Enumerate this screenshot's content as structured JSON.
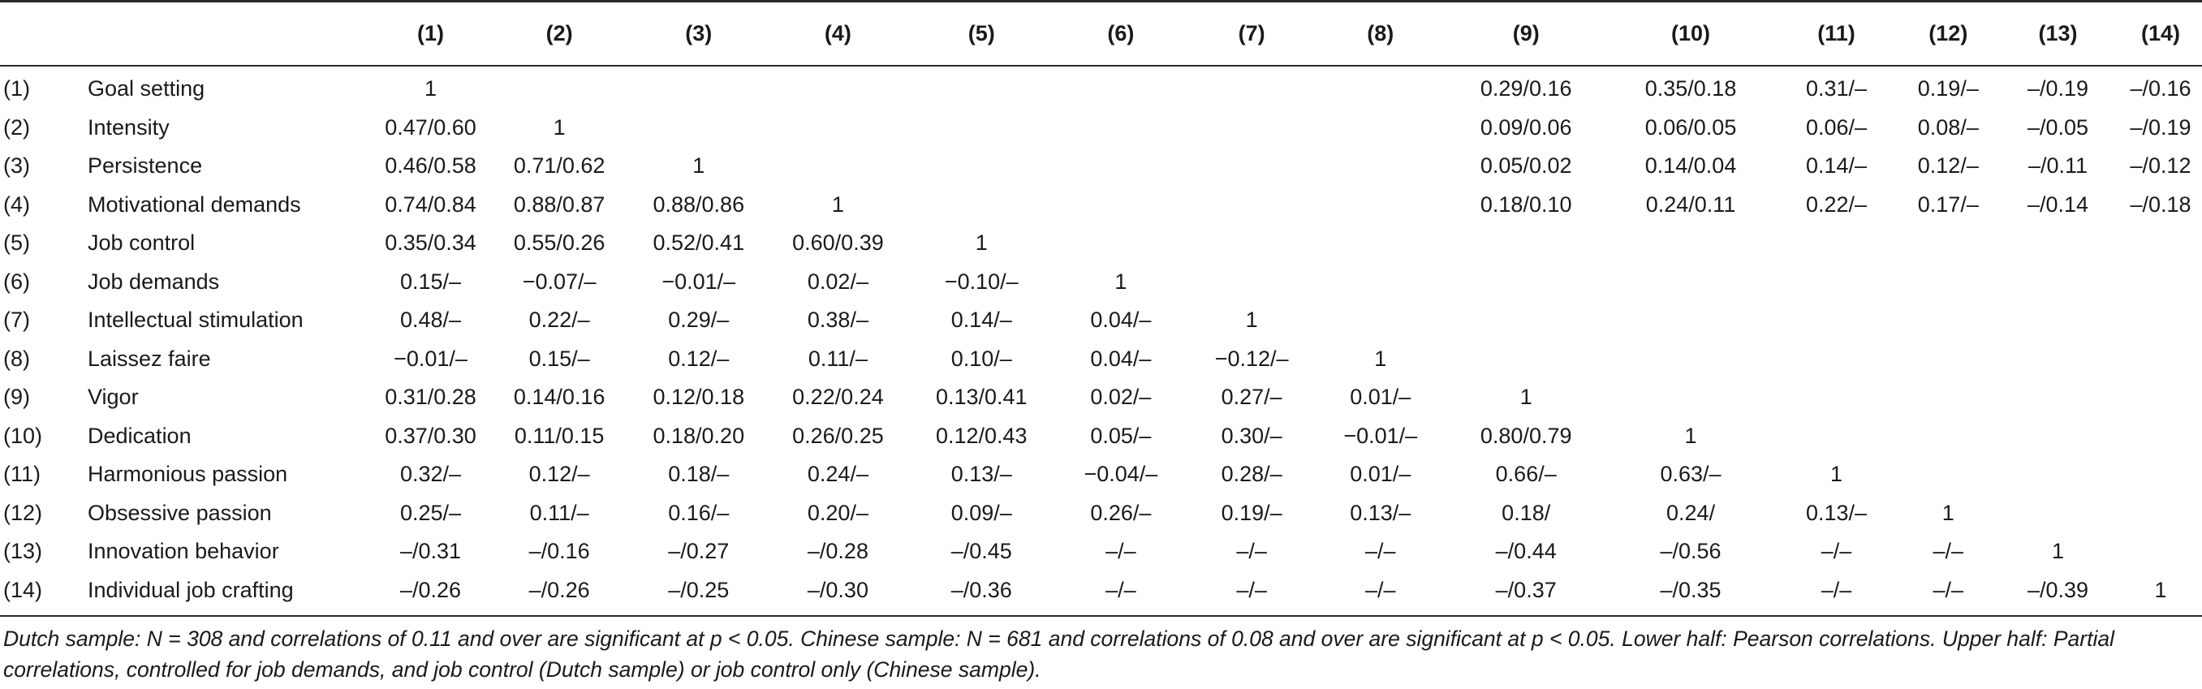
{
  "table": {
    "columns": [
      "(1)",
      "(2)",
      "(3)",
      "(4)",
      "(5)",
      "(6)",
      "(7)",
      "(8)",
      "(9)",
      "(10)",
      "(11)",
      "(12)",
      "(13)",
      "(14)"
    ],
    "rows": [
      {
        "num": "(1)",
        "name": "Goal setting",
        "cells": [
          "1",
          "",
          "",
          "",
          "",
          "",
          "",
          "",
          "0.29/0.16",
          "0.35/0.18",
          "0.31/–",
          "0.19/–",
          "–/0.19",
          "–/0.16"
        ]
      },
      {
        "num": "(2)",
        "name": "Intensity",
        "cells": [
          "0.47/0.60",
          "1",
          "",
          "",
          "",
          "",
          "",
          "",
          "0.09/0.06",
          "0.06/0.05",
          "0.06/–",
          "0.08/–",
          "–/0.05",
          "–/0.19"
        ]
      },
      {
        "num": "(3)",
        "name": "Persistence",
        "cells": [
          "0.46/0.58",
          "0.71/0.62",
          "1",
          "",
          "",
          "",
          "",
          "",
          "0.05/0.02",
          "0.14/0.04",
          "0.14/–",
          "0.12/–",
          "–/0.11",
          "–/0.12"
        ]
      },
      {
        "num": "(4)",
        "name": "Motivational demands",
        "cells": [
          "0.74/0.84",
          "0.88/0.87",
          "0.88/0.86",
          "1",
          "",
          "",
          "",
          "",
          "0.18/0.10",
          "0.24/0.11",
          "0.22/–",
          "0.17/–",
          "–/0.14",
          "–/0.18"
        ]
      },
      {
        "num": "(5)",
        "name": "Job control",
        "cells": [
          "0.35/0.34",
          "0.55/0.26",
          "0.52/0.41",
          "0.60/0.39",
          "1",
          "",
          "",
          "",
          "",
          "",
          "",
          "",
          "",
          ""
        ]
      },
      {
        "num": "(6)",
        "name": "Job demands",
        "cells": [
          "0.15/–",
          "−0.07/–",
          "−0.01/–",
          "0.02/–",
          "−0.10/–",
          "1",
          "",
          "",
          "",
          "",
          "",
          "",
          "",
          ""
        ]
      },
      {
        "num": "(7)",
        "name": "Intellectual stimulation",
        "cells": [
          "0.48/–",
          "0.22/–",
          "0.29/–",
          "0.38/–",
          "0.14/–",
          "0.04/–",
          "1",
          "",
          "",
          "",
          "",
          "",
          "",
          ""
        ]
      },
      {
        "num": "(8)",
        "name": "Laissez faire",
        "cells": [
          "−0.01/–",
          "0.15/–",
          "0.12/–",
          "0.11/–",
          "0.10/–",
          "0.04/–",
          "−0.12/–",
          "1",
          "",
          "",
          "",
          "",
          "",
          ""
        ]
      },
      {
        "num": "(9)",
        "name": "Vigor",
        "cells": [
          "0.31/0.28",
          "0.14/0.16",
          "0.12/0.18",
          "0.22/0.24",
          "0.13/0.41",
          "0.02/–",
          "0.27/–",
          "0.01/–",
          "1",
          "",
          "",
          "",
          "",
          ""
        ]
      },
      {
        "num": "(10)",
        "name": "Dedication",
        "cells": [
          "0.37/0.30",
          "0.11/0.15",
          "0.18/0.20",
          "0.26/0.25",
          "0.12/0.43",
          "0.05/–",
          "0.30/–",
          "−0.01/–",
          "0.80/0.79",
          "1",
          "",
          "",
          "",
          ""
        ]
      },
      {
        "num": "(11)",
        "name": "Harmonious passion",
        "cells": [
          "0.32/–",
          "0.12/–",
          "0.18/–",
          "0.24/–",
          "0.13/–",
          "−0.04/–",
          "0.28/–",
          "0.01/–",
          "0.66/–",
          "0.63/–",
          "1",
          "",
          "",
          ""
        ]
      },
      {
        "num": "(12)",
        "name": "Obsessive passion",
        "cells": [
          "0.25/–",
          "0.11/–",
          "0.16/–",
          "0.20/–",
          "0.09/–",
          "0.26/–",
          "0.19/–",
          "0.13/–",
          "0.18/",
          "0.24/",
          "0.13/–",
          "1",
          "",
          ""
        ]
      },
      {
        "num": "(13)",
        "name": "Innovation behavior",
        "cells": [
          "–/0.31",
          "–/0.16",
          "–/0.27",
          "–/0.28",
          "–/0.45",
          "–/–",
          "–/–",
          "–/–",
          "–/0.44",
          "–/0.56",
          "–/–",
          "–/–",
          "1",
          ""
        ]
      },
      {
        "num": "(14)",
        "name": "Individual job crafting",
        "cells": [
          "–/0.26",
          "–/0.26",
          "–/0.25",
          "–/0.30",
          "–/0.36",
          "–/–",
          "–/–",
          "–/–",
          "–/0.37",
          "–/0.35",
          "–/–",
          "–/–",
          "–/0.39",
          "1"
        ]
      }
    ]
  },
  "note": "Dutch sample: N = 308 and correlations of 0.11 and over are significant at p < 0.05. Chinese sample: N = 681 and correlations of 0.08 and over are significant at p < 0.05. Lower half: Pearson correlations. Upper half: Partial correlations, controlled for job demands, and job control (Dutch sample) or job control only (Chinese sample)."
}
